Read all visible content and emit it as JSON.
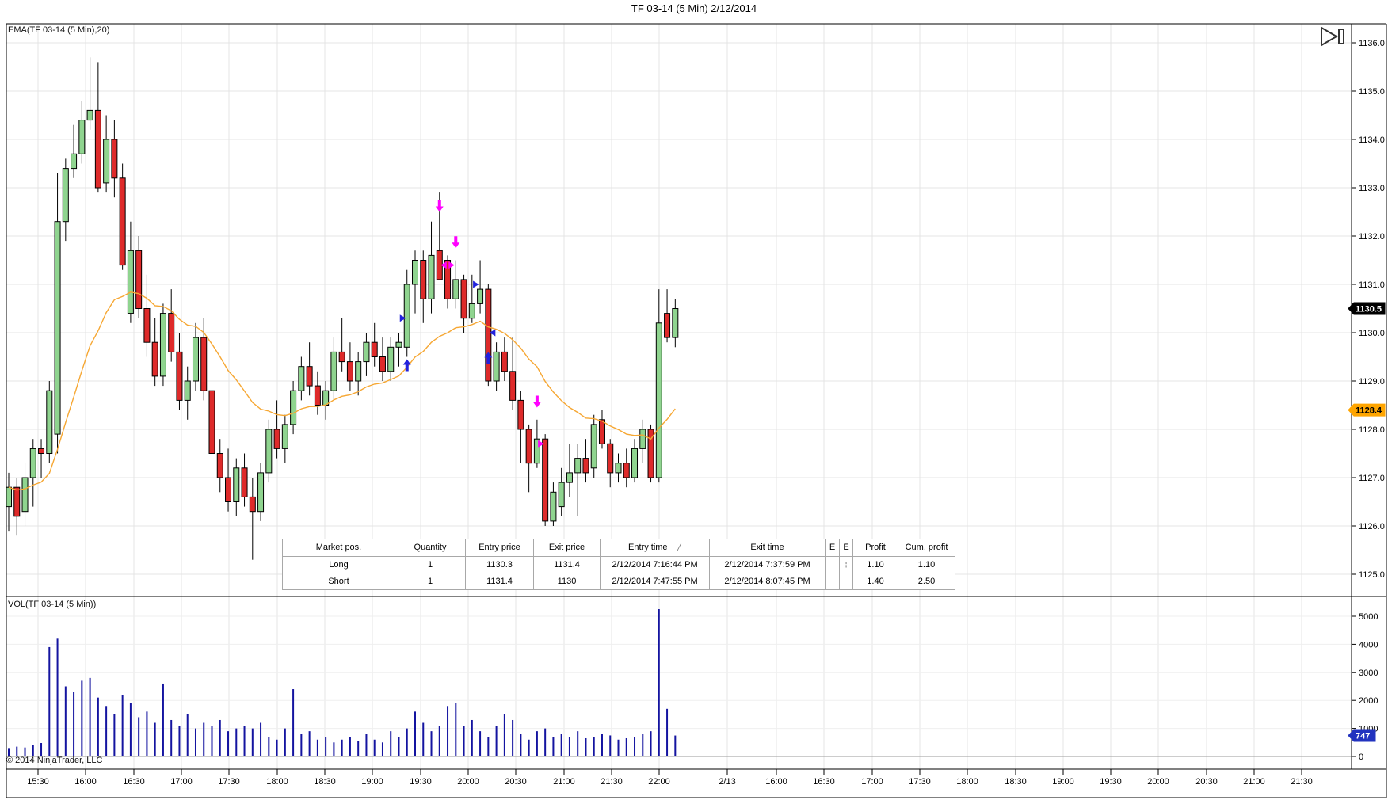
{
  "window": {
    "title": "TF 03-14 (5 Min)  2/12/2014"
  },
  "price_panel": {
    "indicator_label": "EMA(TF 03-14 (5 Min),20)"
  },
  "volume_panel": {
    "indicator_label": "VOL(TF 03-14 (5 Min))",
    "copyright": "© 2014 NinjaTrader, LLC"
  },
  "colors": {
    "up_candle": "#8FD48F",
    "down_candle": "#DE2A2A",
    "candle_outline": "#000000",
    "ema_line": "#F6A733",
    "volume_bar": "#1414A0",
    "grid": "#E4E4E4",
    "long_marker": "#2222DD",
    "short_marker": "#FF00FF",
    "badge_last_bg": "#000000",
    "badge_last_fg": "#FFFFFF",
    "badge_ema_bg": "#FFA500",
    "badge_ema_fg": "#000000",
    "badge_vol_bg": "#2233BF",
    "badge_vol_fg": "#FFFFFF"
  },
  "chart_data": {
    "type": "candlestick",
    "title": "TF 03-14 (5 Min)  2/12/2014",
    "instrument": "TF 03-14",
    "interval": "5 Min",
    "ema_period": 20,
    "price_range": [
      1125.0,
      1136.0
    ],
    "volume_range": [
      0,
      5500
    ],
    "grid": "on",
    "price_ticks": [
      {
        "label": "1136.0",
        "value": 1136.0
      },
      {
        "label": "1135.0",
        "value": 1135.0
      },
      {
        "label": "1134.0",
        "value": 1134.0
      },
      {
        "label": "1133.0",
        "value": 1133.0
      },
      {
        "label": "1132.0",
        "value": 1132.0
      },
      {
        "label": "1131.0",
        "value": 1131.0
      },
      {
        "label": "1130.0",
        "value": 1130.0
      },
      {
        "label": "1129.0",
        "value": 1129.0
      },
      {
        "label": "1128.0",
        "value": 1128.0
      },
      {
        "label": "1127.0",
        "value": 1127.0
      },
      {
        "label": "1126.0",
        "value": 1126.0
      },
      {
        "label": "1125.0",
        "value": 1125.0
      }
    ],
    "volume_ticks": [
      {
        "label": "5000",
        "value": 5000
      },
      {
        "label": "4000",
        "value": 4000
      },
      {
        "label": "3000",
        "value": 3000
      },
      {
        "label": "2000",
        "value": 2000
      },
      {
        "label": "1000",
        "value": 1000
      },
      {
        "label": "0",
        "value": 0
      }
    ],
    "time_ticks": [
      "15:30",
      "16:00",
      "16:30",
      "17:00",
      "17:30",
      "18:00",
      "18:30",
      "19:00",
      "19:30",
      "20:00",
      "20:30",
      "21:00",
      "21:30",
      "22:00",
      "2/13",
      "16:00",
      "16:30",
      "17:00",
      "17:30",
      "18:00",
      "18:30",
      "19:00",
      "19:30",
      "20:00",
      "20:30",
      "21:00",
      "21:30"
    ],
    "last_price_badge": {
      "label": "1130.5",
      "value": 1130.5
    },
    "ema_value_badge": {
      "label": "1128.4",
      "value": 1128.4
    },
    "last_volume_badge": {
      "label": "747",
      "value": 747
    },
    "candles_ohlc": [
      [
        1126.4,
        1127.1,
        1125.9,
        1126.8
      ],
      [
        1126.8,
        1127.0,
        1125.8,
        1126.2
      ],
      [
        1126.3,
        1127.3,
        1126.0,
        1127.0
      ],
      [
        1127.0,
        1127.8,
        1126.4,
        1127.6
      ],
      [
        1127.6,
        1127.8,
        1127.0,
        1127.5
      ],
      [
        1127.5,
        1129.0,
        1127.3,
        1128.8
      ],
      [
        1127.9,
        1133.3,
        1127.5,
        1132.3
      ],
      [
        1132.3,
        1133.6,
        1131.9,
        1133.4
      ],
      [
        1133.4,
        1134.3,
        1133.2,
        1133.7
      ],
      [
        1133.7,
        1134.8,
        1133.5,
        1134.4
      ],
      [
        1134.4,
        1135.7,
        1134.2,
        1134.6
      ],
      [
        1134.6,
        1135.6,
        1132.9,
        1133.0
      ],
      [
        1133.1,
        1134.5,
        1132.9,
        1134.0
      ],
      [
        1134.0,
        1134.4,
        1132.8,
        1133.2
      ],
      [
        1133.2,
        1133.5,
        1131.3,
        1131.4
      ],
      [
        1130.4,
        1132.3,
        1130.2,
        1131.7
      ],
      [
        1131.7,
        1132.0,
        1130.3,
        1130.5
      ],
      [
        1130.5,
        1131.2,
        1129.5,
        1129.8
      ],
      [
        1129.8,
        1130.3,
        1128.9,
        1129.1
      ],
      [
        1129.1,
        1130.6,
        1128.9,
        1130.4
      ],
      [
        1130.4,
        1130.9,
        1129.4,
        1129.6
      ],
      [
        1129.6,
        1130.0,
        1128.4,
        1128.6
      ],
      [
        1128.6,
        1129.3,
        1128.2,
        1129.0
      ],
      [
        1129.0,
        1130.2,
        1128.8,
        1129.9
      ],
      [
        1129.9,
        1130.3,
        1128.6,
        1128.8
      ],
      [
        1128.8,
        1129.0,
        1127.3,
        1127.5
      ],
      [
        1127.5,
        1127.8,
        1126.7,
        1127.0
      ],
      [
        1127.0,
        1127.6,
        1126.3,
        1126.5
      ],
      [
        1126.5,
        1127.4,
        1126.2,
        1127.2
      ],
      [
        1127.2,
        1127.5,
        1126.4,
        1126.6
      ],
      [
        1126.6,
        1127.0,
        1125.3,
        1126.3
      ],
      [
        1126.3,
        1127.3,
        1126.1,
        1127.1
      ],
      [
        1127.1,
        1128.2,
        1126.9,
        1128.0
      ],
      [
        1128.0,
        1128.6,
        1127.4,
        1127.6
      ],
      [
        1127.6,
        1128.3,
        1127.3,
        1128.1
      ],
      [
        1128.1,
        1129.0,
        1127.9,
        1128.8
      ],
      [
        1128.8,
        1129.5,
        1128.6,
        1129.3
      ],
      [
        1129.3,
        1129.8,
        1128.7,
        1128.9
      ],
      [
        1128.9,
        1129.2,
        1128.3,
        1128.5
      ],
      [
        1128.5,
        1129.0,
        1128.2,
        1128.8
      ],
      [
        1128.8,
        1129.9,
        1128.6,
        1129.6
      ],
      [
        1129.6,
        1130.3,
        1129.2,
        1129.4
      ],
      [
        1129.4,
        1129.8,
        1128.8,
        1129.0
      ],
      [
        1129.0,
        1129.6,
        1128.7,
        1129.4
      ],
      [
        1129.4,
        1130.0,
        1129.1,
        1129.8
      ],
      [
        1129.8,
        1130.2,
        1129.3,
        1129.5
      ],
      [
        1129.5,
        1129.9,
        1129.0,
        1129.2
      ],
      [
        1129.2,
        1129.9,
        1129.0,
        1129.7
      ],
      [
        1129.7,
        1130.0,
        1129.3,
        1129.8
      ],
      [
        1129.7,
        1131.3,
        1129.5,
        1131.0
      ],
      [
        1131.0,
        1131.7,
        1130.4,
        1131.5
      ],
      [
        1131.5,
        1131.7,
        1130.2,
        1130.7
      ],
      [
        1130.7,
        1132.3,
        1130.4,
        1131.6
      ],
      [
        1131.7,
        1132.9,
        1131.1,
        1131.1
      ],
      [
        1131.5,
        1131.6,
        1130.5,
        1130.7
      ],
      [
        1130.7,
        1131.5,
        1130.5,
        1131.1
      ],
      [
        1131.1,
        1131.2,
        1130.0,
        1130.3
      ],
      [
        1130.3,
        1131.2,
        1130.2,
        1130.6
      ],
      [
        1130.6,
        1131.5,
        1130.4,
        1130.9
      ],
      [
        1130.9,
        1131.0,
        1128.9,
        1129.0
      ],
      [
        1129.0,
        1129.8,
        1128.8,
        1129.6
      ],
      [
        1129.6,
        1129.9,
        1129.0,
        1129.2
      ],
      [
        1129.2,
        1129.9,
        1128.4,
        1128.6
      ],
      [
        1128.6,
        1128.8,
        1127.3,
        1128.0
      ],
      [
        1128.0,
        1128.1,
        1126.7,
        1127.3
      ],
      [
        1127.3,
        1128.2,
        1127.2,
        1127.8
      ],
      [
        1127.8,
        1127.9,
        1126.0,
        1126.1
      ],
      [
        1126.1,
        1126.9,
        1126.0,
        1126.7
      ],
      [
        1126.4,
        1127.2,
        1126.2,
        1126.9
      ],
      [
        1126.9,
        1127.7,
        1126.6,
        1127.1
      ],
      [
        1127.1,
        1127.7,
        1126.2,
        1127.4
      ],
      [
        1127.4,
        1127.8,
        1126.9,
        1127.1
      ],
      [
        1127.2,
        1128.3,
        1127.0,
        1128.1
      ],
      [
        1128.2,
        1128.4,
        1127.6,
        1127.7
      ],
      [
        1127.7,
        1127.8,
        1126.8,
        1127.1
      ],
      [
        1127.1,
        1127.5,
        1126.9,
        1127.3
      ],
      [
        1127.3,
        1127.6,
        1126.8,
        1127.0
      ],
      [
        1127.0,
        1127.8,
        1126.9,
        1127.6
      ],
      [
        1127.6,
        1128.2,
        1127.3,
        1128.0
      ],
      [
        1128.0,
        1128.1,
        1126.9,
        1127.0
      ],
      [
        1127.0,
        1130.9,
        1126.9,
        1130.2
      ],
      [
        1130.4,
        1130.9,
        1129.8,
        1129.9
      ],
      [
        1129.9,
        1130.7,
        1129.7,
        1130.5
      ]
    ],
    "volumes": [
      300,
      350,
      320,
      420,
      480,
      3900,
      4200,
      2500,
      2300,
      2700,
      2800,
      2100,
      1800,
      1500,
      2200,
      1900,
      1400,
      1600,
      1200,
      2600,
      1300,
      1100,
      1500,
      1000,
      1200,
      1100,
      1300,
      900,
      1000,
      1100,
      1000,
      1200,
      700,
      600,
      1000,
      2400,
      800,
      900,
      600,
      700,
      500,
      600,
      700,
      550,
      800,
      600,
      500,
      900,
      700,
      1000,
      1600,
      1200,
      900,
      1100,
      1800,
      1900,
      1100,
      1300,
      900,
      700,
      1100,
      1500,
      1300,
      800,
      600,
      900,
      1000,
      700,
      800,
      700,
      900,
      650,
      700,
      800,
      750,
      600,
      650,
      700,
      800,
      900,
      5254,
      1700,
      747
    ],
    "markers": [
      {
        "shape": "arrow-up",
        "color": "blue",
        "bar": 49,
        "price": 1129.45,
        "meaning": "long-entry-signal"
      },
      {
        "shape": "tri-right",
        "color": "blue",
        "bar": 49,
        "price": 1130.3,
        "meaning": "long-entry-price"
      },
      {
        "shape": "arrow-down",
        "color": "magenta",
        "bar": 53,
        "price": 1132.5,
        "meaning": "long-exit-signal"
      },
      {
        "shape": "tri-left",
        "color": "magenta",
        "bar": 53,
        "price": 1131.4,
        "meaning": "long-exit-price"
      },
      {
        "shape": "arrow-down",
        "color": "magenta",
        "bar": 55,
        "price": 1131.75,
        "meaning": "short-entry-signal"
      },
      {
        "shape": "tri-right",
        "color": "magenta",
        "bar": 55,
        "price": 1131.4,
        "meaning": "short-entry-price"
      },
      {
        "shape": "tri-right",
        "color": "blue",
        "bar": 58,
        "price": 1131.0,
        "meaning": "order-marker"
      },
      {
        "shape": "tri-left",
        "color": "blue",
        "bar": 59,
        "price": 1130.0,
        "meaning": "short-exit-price"
      },
      {
        "shape": "arrow-up",
        "color": "blue",
        "bar": 59,
        "price": 1129.6,
        "meaning": "short-exit-signal"
      },
      {
        "shape": "arrow-down",
        "color": "magenta",
        "bar": 65,
        "price": 1128.45,
        "meaning": "signal"
      },
      {
        "shape": "tri-right",
        "color": "magenta",
        "bar": 66,
        "price": 1127.7,
        "meaning": "order-marker"
      }
    ]
  },
  "trade_table": {
    "columns": [
      "Market pos.",
      "Quantity",
      "Entry price",
      "Exit price",
      "Entry time",
      "Exit time",
      "E",
      "E",
      "Profit",
      "Cum. profit"
    ],
    "sort_column_index": 4,
    "rows": [
      [
        "Long",
        "1",
        "1130.3",
        "1131.4",
        "2/12/2014 7:16:44 PM",
        "2/12/2014 7:37:59 PM",
        "",
        "¦",
        "1.10",
        "1.10"
      ],
      [
        "Short",
        "1",
        "1131.4",
        "1130",
        "2/12/2014 7:47:55 PM",
        "2/12/2014 8:07:45 PM",
        "",
        "",
        "1.40",
        "2.50"
      ]
    ]
  }
}
